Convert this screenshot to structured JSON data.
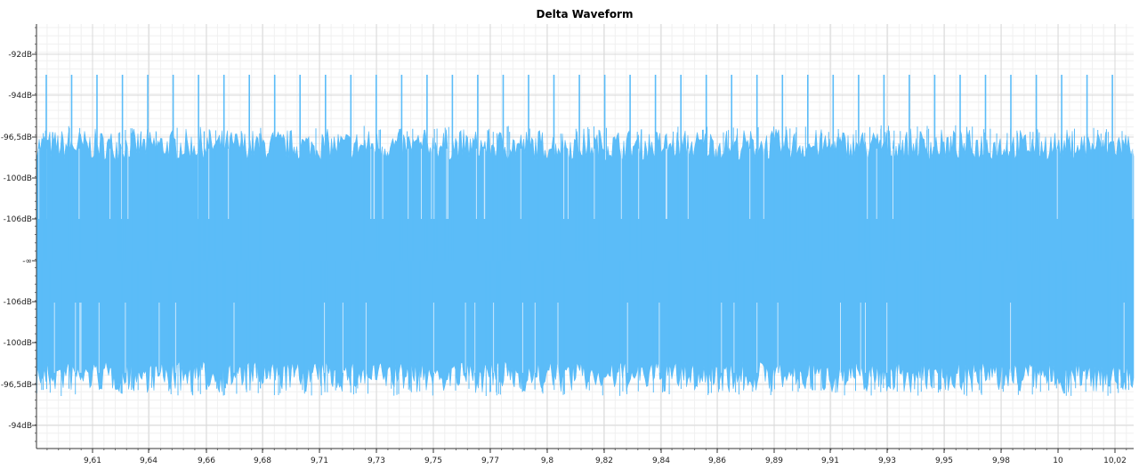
{
  "chart_data": {
    "type": "area",
    "title": "Delta Waveform",
    "xlabel": "",
    "ylabel": "",
    "grid": true,
    "legend": "none",
    "color": "#5bbcf8",
    "xlim": [
      9.585,
      10.0345
    ],
    "x_ticks": [
      "9,61",
      "9,64",
      "9,66",
      "9,68",
      "9,71",
      "9,73",
      "9,75",
      "9,77",
      "9,8",
      "9,82",
      "9,84",
      "9,86",
      "9,89",
      "9,91",
      "9,93",
      "9,95",
      "9,98",
      "10",
      "10,02"
    ],
    "y_ticks": [
      "-92dB",
      "-94dB",
      "-96,5dB",
      "-100dB",
      "-106dB",
      "-∞",
      "-106dB",
      "-100dB",
      "-96,5dB",
      "-94dB"
    ],
    "series": [
      {
        "envelope_typical_peak_db": -96.5,
        "envelope_noise_range_db": [
          -98.5,
          -96.0
        ],
        "periodic_spike_peak_db": -93.0,
        "periodic_spike_polarity": "positive",
        "spike_period_x": 0.0104,
        "first_spike_x": 9.589
      }
    ]
  }
}
